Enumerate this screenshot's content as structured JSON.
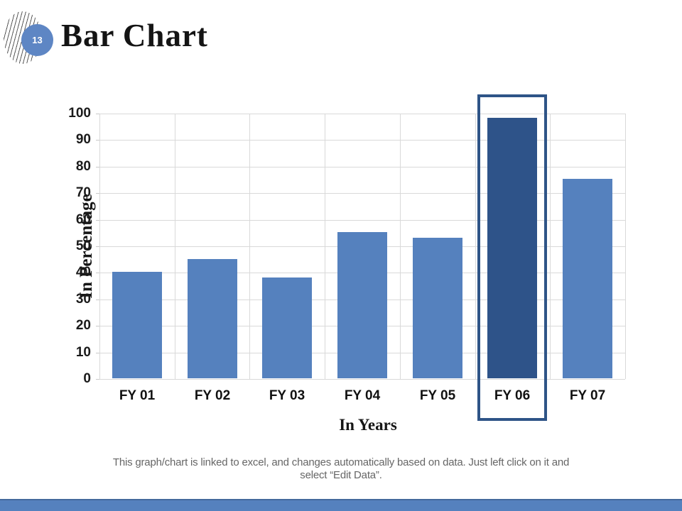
{
  "slide": {
    "page_number": "13",
    "title": "Bar Chart",
    "footer_line1": "This graph/chart is linked to excel, and changes automatically based on data. Just left click on it and",
    "footer_line2": "select “Edit Data”."
  },
  "chart_data": {
    "type": "bar",
    "title": "",
    "categories": [
      "FY 01",
      "FY 02",
      "FY 03",
      "FY 04",
      "FY 05",
      "FY 06",
      "FY 07"
    ],
    "values": [
      40,
      45,
      38,
      55,
      53,
      98,
      75
    ],
    "xlabel": "In Years",
    "ylabel": "In Percentage",
    "ylim": [
      0,
      100
    ],
    "ytick_step": 10,
    "grid": true,
    "legend": "none",
    "highlighted_category": "FY 06"
  },
  "colors": {
    "bar_fill": "#5581be",
    "highlight_bar_fill": "#2e5389",
    "highlight_box_border": "#2e5487",
    "gridline": "#d9d9d9",
    "page_circle": "#5e86c4",
    "bottom_bar": "#5581be",
    "bottom_bar_edge": "#44699c",
    "footer_text": "#666666"
  }
}
